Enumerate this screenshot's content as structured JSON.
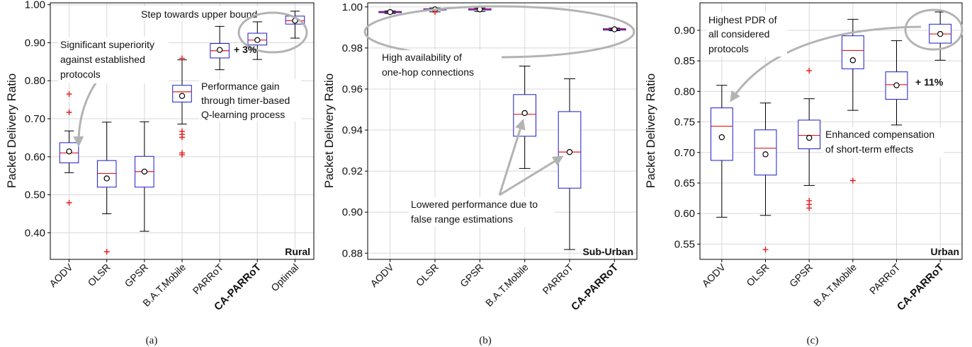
{
  "chart_data": [
    {
      "type": "box",
      "panel_label": "(a)",
      "environment": "Rural",
      "ylabel": "Packet Delivery Ratio",
      "ylim": [
        0.33,
        1.005
      ],
      "yticks": [
        0.4,
        0.5,
        0.6,
        0.7,
        0.8,
        0.9,
        1.0
      ],
      "categories": [
        "AODV",
        "OLSR",
        "GPSR",
        "B.A.T.Mobile",
        "PARRoT",
        "CA-PARRoT",
        "Optimal"
      ],
      "bold_category": "CA-PARRoT",
      "boxes": [
        {
          "q1": 0.584,
          "median": 0.61,
          "q3": 0.637,
          "whisker_low": 0.558,
          "whisker_high": 0.668,
          "mean": 0.614,
          "outliers": [
            0.479,
            0.717,
            0.765
          ]
        },
        {
          "q1": 0.52,
          "median": 0.556,
          "q3": 0.59,
          "whisker_low": 0.45,
          "whisker_high": 0.691,
          "mean": 0.543,
          "outliers": [
            0.35
          ]
        },
        {
          "q1": 0.52,
          "median": 0.561,
          "q3": 0.601,
          "whisker_low": 0.404,
          "whisker_high": 0.692,
          "mean": 0.561,
          "outliers": []
        },
        {
          "q1": 0.744,
          "median": 0.771,
          "q3": 0.788,
          "whisker_low": 0.686,
          "whisker_high": 0.855,
          "mean": 0.76,
          "outliers": [
            0.605,
            0.61,
            0.651,
            0.659,
            0.667,
            0.859
          ]
        },
        {
          "q1": 0.86,
          "median": 0.879,
          "q3": 0.898,
          "whisker_low": 0.829,
          "whisker_high": 0.943,
          "mean": 0.881,
          "outliers": []
        },
        {
          "q1": 0.894,
          "median": 0.907,
          "q3": 0.925,
          "whisker_low": 0.856,
          "whisker_high": 0.955,
          "mean": 0.907,
          "outliers": []
        },
        {
          "q1": 0.949,
          "median": 0.958,
          "q3": 0.97,
          "whisker_low": 0.912,
          "whisker_high": 0.983,
          "mean": 0.958,
          "outliers": []
        }
      ],
      "annotations": [
        "Significant superiority",
        "against established",
        "protocols",
        "Step towards upper bound",
        "+ 3%",
        "Performance gain",
        "through timer-based",
        "Q-learning process"
      ]
    },
    {
      "type": "box",
      "panel_label": "(b)",
      "environment": "Sub-Urban",
      "ylabel": "Packet Delivery Ratio",
      "ylim": [
        0.877,
        1.002
      ],
      "yticks": [
        0.88,
        0.9,
        0.92,
        0.94,
        0.96,
        0.98,
        1.0
      ],
      "categories": [
        "AODV",
        "OLSR",
        "GPSR",
        "B.A.T.Mobile",
        "PARRoT",
        "CA-PARRoT"
      ],
      "bold_category": "CA-PARRoT",
      "boxes": [
        {
          "q1": 0.9972,
          "median": 0.9975,
          "q3": 0.9978,
          "whisker_low": 0.9968,
          "whisker_high": 0.9981,
          "mean": 0.9975,
          "outliers": []
        },
        {
          "q1": 0.9985,
          "median": 0.9988,
          "q3": 0.9991,
          "whisker_low": 0.9976,
          "whisker_high": 0.9995,
          "mean": 0.9988,
          "outliers": [
            0.9975
          ]
        },
        {
          "q1": 0.9985,
          "median": 0.9988,
          "q3": 0.9991,
          "whisker_low": 0.9978,
          "whisker_high": 0.9995,
          "mean": 0.9988,
          "outliers": []
        },
        {
          "q1": 0.937,
          "median": 0.9477,
          "q3": 0.9573,
          "whisker_low": 0.9213,
          "whisker_high": 0.9712,
          "mean": 0.9483,
          "outliers": []
        },
        {
          "q1": 0.9117,
          "median": 0.9293,
          "q3": 0.949,
          "whisker_low": 0.8818,
          "whisker_high": 0.965,
          "mean": 0.9293,
          "outliers": []
        },
        {
          "q1": 0.9887,
          "median": 0.9891,
          "q3": 0.9894,
          "whisker_low": 0.9884,
          "whisker_high": 0.9897,
          "mean": 0.9891,
          "outliers": []
        }
      ],
      "annotations": [
        "High availability of",
        "one-hop  connections",
        "Lowered performance due to",
        "false range estimations"
      ]
    },
    {
      "type": "box",
      "panel_label": "(c)",
      "environment": "Urban",
      "ylabel": "Packet Delivery Ratio",
      "ylim": [
        0.525,
        0.945
      ],
      "yticks": [
        0.55,
        0.6,
        0.65,
        0.7,
        0.75,
        0.8,
        0.85,
        0.9
      ],
      "categories": [
        "AODV",
        "OLSR",
        "GPSR",
        "B.A.T.Mobile",
        "PARRoT",
        "CA-PARRoT"
      ],
      "bold_category": "CA-PARRoT",
      "boxes": [
        {
          "q1": 0.687,
          "median": 0.743,
          "q3": 0.773,
          "whisker_low": 0.594,
          "whisker_high": 0.81,
          "mean": 0.725,
          "outliers": []
        },
        {
          "q1": 0.663,
          "median": 0.707,
          "q3": 0.737,
          "whisker_low": 0.597,
          "whisker_high": 0.781,
          "mean": 0.697,
          "outliers": [
            0.541
          ]
        },
        {
          "q1": 0.706,
          "median": 0.728,
          "q3": 0.753,
          "whisker_low": 0.646,
          "whisker_high": 0.788,
          "mean": 0.724,
          "outliers": [
            0.609,
            0.615,
            0.621,
            0.834
          ]
        },
        {
          "q1": 0.837,
          "median": 0.867,
          "q3": 0.891,
          "whisker_low": 0.769,
          "whisker_high": 0.918,
          "mean": 0.851,
          "outliers": [
            0.654
          ]
        },
        {
          "q1": 0.787,
          "median": 0.811,
          "q3": 0.832,
          "whisker_low": 0.745,
          "whisker_high": 0.883,
          "mean": 0.81,
          "outliers": []
        },
        {
          "q1": 0.879,
          "median": 0.894,
          "q3": 0.91,
          "whisker_low": 0.851,
          "whisker_high": 0.93,
          "mean": 0.894,
          "outliers": []
        }
      ],
      "annotations": [
        "Highest PDR of",
        "all considered",
        "protocols",
        "+ 11%",
        "Enhanced compensation",
        "of short-term effects"
      ]
    }
  ],
  "colors": {
    "box": "#1a1acc",
    "median": "#e41a1c",
    "outlier": "#e41a1c",
    "whisker": "#000000",
    "mean_marker": "#000000",
    "grid": "#d8d8d8",
    "annotation": "#b3b3b3"
  }
}
